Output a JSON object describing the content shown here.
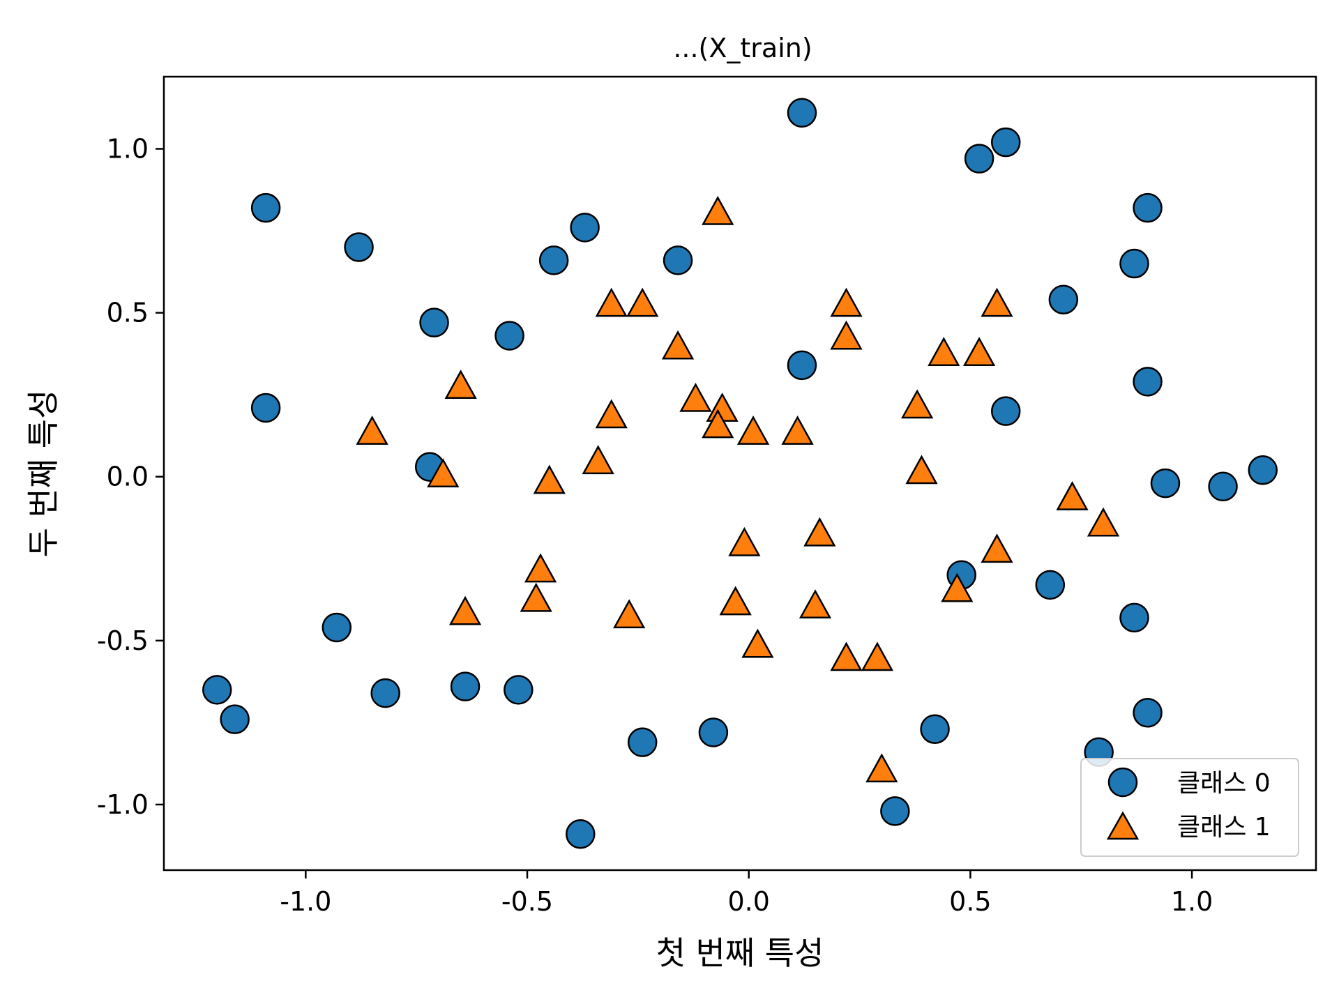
{
  "chart_data": {
    "type": "scatter",
    "title": "...(X_train)",
    "xlabel": "첫 번째 특성",
    "ylabel": "두 번째 특성",
    "xlim": [
      -1.32,
      1.28
    ],
    "ylim": [
      -1.2,
      1.22
    ],
    "xticks": [
      -1.0,
      -0.5,
      0.0,
      0.5,
      1.0
    ],
    "xtick_labels": [
      "-1.0",
      "-0.5",
      "0.0",
      "0.5",
      "1.0"
    ],
    "yticks": [
      -1.0,
      -0.5,
      0.0,
      0.5,
      1.0
    ],
    "ytick_labels": [
      "-1.0",
      "-0.5",
      "0.0",
      "0.5",
      "1.0"
    ],
    "grid": false,
    "legend_position": "bottom-right",
    "series": [
      {
        "name": "클래스 0",
        "marker": "circle",
        "color": "#1f77b4",
        "points": [
          [
            -1.09,
            0.82
          ],
          [
            -0.88,
            0.7
          ],
          [
            -0.71,
            0.47
          ],
          [
            -1.09,
            0.21
          ],
          [
            -0.72,
            0.03
          ],
          [
            -0.54,
            0.43
          ],
          [
            -0.44,
            0.66
          ],
          [
            -0.37,
            0.76
          ],
          [
            -0.16,
            0.66
          ],
          [
            0.12,
            1.11
          ],
          [
            0.52,
            0.97
          ],
          [
            0.58,
            1.02
          ],
          [
            0.9,
            0.82
          ],
          [
            0.87,
            0.65
          ],
          [
            0.71,
            0.54
          ],
          [
            0.12,
            0.34
          ],
          [
            0.9,
            0.29
          ],
          [
            0.58,
            0.2
          ],
          [
            0.94,
            -0.02
          ],
          [
            1.07,
            -0.03
          ],
          [
            1.16,
            0.02
          ],
          [
            0.48,
            -0.3
          ],
          [
            0.68,
            -0.33
          ],
          [
            0.87,
            -0.43
          ],
          [
            0.9,
            -0.72
          ],
          [
            0.79,
            -0.84
          ],
          [
            0.42,
            -0.77
          ],
          [
            0.33,
            -1.02
          ],
          [
            -0.08,
            -0.78
          ],
          [
            -0.24,
            -0.81
          ],
          [
            -0.38,
            -1.09
          ],
          [
            -0.52,
            -0.65
          ],
          [
            -0.64,
            -0.64
          ],
          [
            -0.82,
            -0.66
          ],
          [
            -0.93,
            -0.46
          ],
          [
            -1.2,
            -0.65
          ],
          [
            -1.16,
            -0.74
          ]
        ]
      },
      {
        "name": "클래스 1",
        "marker": "triangle",
        "color": "#ff7f0e",
        "points": [
          [
            -0.07,
            0.8
          ],
          [
            -0.31,
            0.52
          ],
          [
            -0.24,
            0.52
          ],
          [
            -0.16,
            0.39
          ],
          [
            -0.12,
            0.23
          ],
          [
            -0.06,
            0.2
          ],
          [
            -0.07,
            0.15
          ],
          [
            0.01,
            0.13
          ],
          [
            0.11,
            0.13
          ],
          [
            -0.31,
            0.18
          ],
          [
            -0.34,
            0.04
          ],
          [
            -0.45,
            -0.02
          ],
          [
            -0.69,
            0.0
          ],
          [
            -0.65,
            0.27
          ],
          [
            -0.85,
            0.13
          ],
          [
            0.22,
            0.52
          ],
          [
            0.22,
            0.42
          ],
          [
            0.56,
            0.52
          ],
          [
            0.44,
            0.37
          ],
          [
            0.52,
            0.37
          ],
          [
            0.38,
            0.21
          ],
          [
            0.39,
            0.01
          ],
          [
            0.73,
            -0.07
          ],
          [
            0.8,
            -0.15
          ],
          [
            0.56,
            -0.23
          ],
          [
            0.47,
            -0.35
          ],
          [
            0.16,
            -0.18
          ],
          [
            -0.01,
            -0.21
          ],
          [
            0.15,
            -0.4
          ],
          [
            -0.03,
            -0.39
          ],
          [
            0.02,
            -0.52
          ],
          [
            0.22,
            -0.56
          ],
          [
            0.29,
            -0.56
          ],
          [
            0.3,
            -0.9
          ],
          [
            -0.27,
            -0.43
          ],
          [
            -0.47,
            -0.29
          ],
          [
            -0.48,
            -0.38
          ],
          [
            -0.64,
            -0.42
          ]
        ]
      }
    ]
  }
}
